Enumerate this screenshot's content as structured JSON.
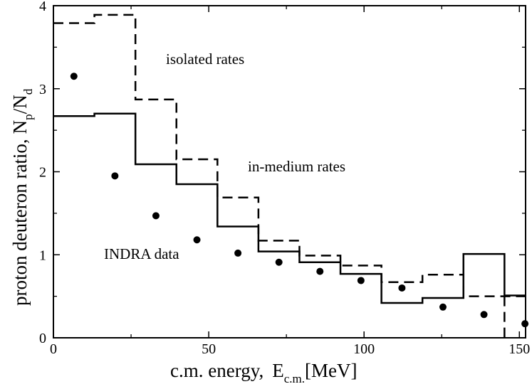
{
  "chart_data": {
    "type": "line",
    "title": "",
    "xlabel": {
      "prefix": "c.m. energy,",
      "main": "E",
      "sub": "c.m.",
      "suffix": "[MeV]"
    },
    "ylabel": {
      "prefix": "proton deuteron ratio,",
      "n1": "N",
      "s1": "p",
      "slash": "/",
      "n2": "N",
      "s2": "d"
    },
    "xlim": [
      0,
      152
    ],
    "ylim": [
      0,
      4
    ],
    "xticks": [
      0,
      50,
      100,
      150
    ],
    "yticks": [
      0,
      1,
      2,
      3,
      4
    ],
    "grid": false,
    "series": [
      {
        "name": "isolated rates",
        "style": "dashed",
        "step": true,
        "edges": [
          0,
          13.2,
          26.4,
          39.6,
          52.8,
          66,
          79.2,
          92.4,
          105.6,
          118.8,
          132,
          145.2,
          152
        ],
        "values": [
          3.79,
          3.89,
          2.87,
          2.15,
          1.69,
          1.17,
          0.99,
          0.87,
          0.67,
          0.76,
          0.5,
          0.5
        ]
      },
      {
        "name": "in-medium rates",
        "style": "solid",
        "step": true,
        "edges": [
          0,
          13.2,
          26.4,
          39.6,
          52.8,
          66,
          79.2,
          92.4,
          105.6,
          118.8,
          132,
          145.2,
          152
        ],
        "values": [
          2.67,
          2.7,
          2.09,
          1.85,
          1.34,
          1.04,
          0.91,
          0.77,
          0.42,
          0.48,
          1.01,
          0.51
        ]
      },
      {
        "name": "INDRA data",
        "style": "markers",
        "x": [
          6.6,
          19.8,
          33,
          46.2,
          59.4,
          72.6,
          85.8,
          99,
          112.2,
          125.4,
          138.6,
          151.8
        ],
        "y": [
          3.15,
          1.95,
          1.47,
          1.18,
          1.02,
          0.91,
          0.8,
          0.69,
          0.6,
          0.37,
          0.28,
          0.17
        ]
      }
    ],
    "annotations": {
      "isolated": "isolated rates",
      "medium": "in-medium rates",
      "indra": "INDRA data"
    }
  }
}
